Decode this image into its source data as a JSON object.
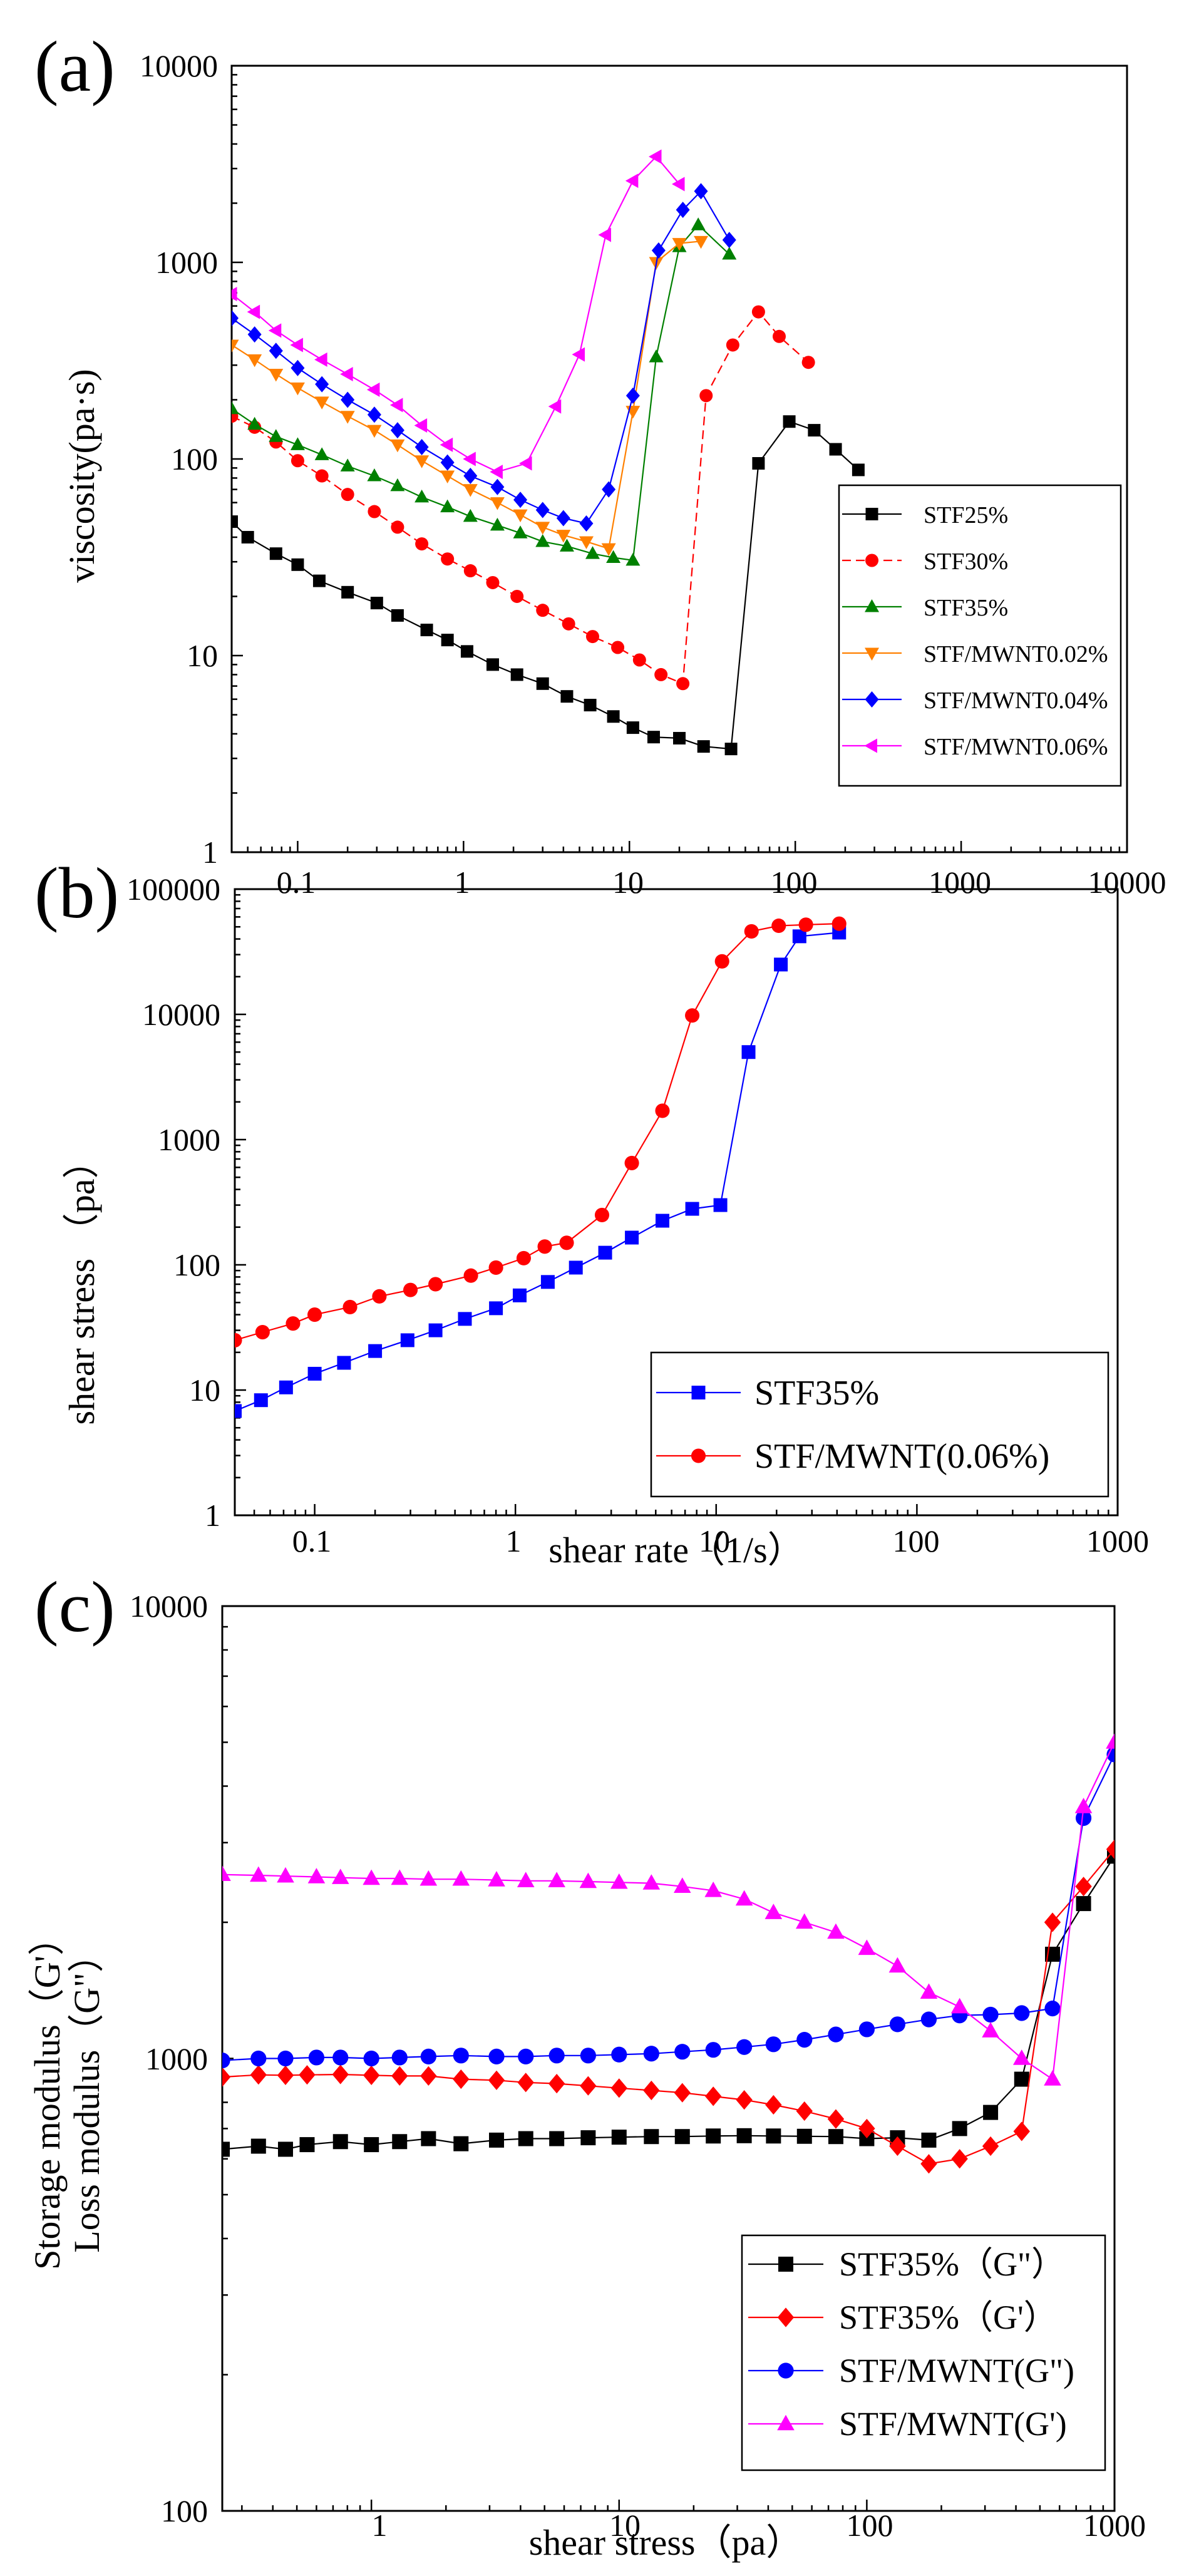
{
  "charts": [
    {
      "id": "a",
      "panel_label": "(a)",
      "ylabel": "viscosity(pa·s)",
      "xlabel": "",
      "x_tick_labels": [
        "0.1",
        "1",
        "10",
        "100",
        "1000",
        "10000"
      ],
      "y_tick_labels": [
        "1",
        "10",
        "100",
        "1000",
        "10000"
      ],
      "series_labels": [
        "STF25%",
        "STF30%",
        "STF35%",
        "STF/MWNT0.02%",
        "STF/MWNT0.04%",
        "STF/MWNT0.06%"
      ]
    },
    {
      "id": "b",
      "panel_label": "(b)",
      "ylabel": "shear stress （pa）",
      "xlabel": "shear rate（1/s）",
      "x_tick_labels": [
        "0.1",
        "1",
        "10",
        "100",
        "1000"
      ],
      "y_tick_labels": [
        "1",
        "10",
        "100",
        "1000",
        "10000",
        "100000"
      ],
      "series_labels": [
        "STF35%",
        "STF/MWNT(0.06%)"
      ]
    },
    {
      "id": "c",
      "panel_label": "(c)",
      "ylabel": "Storage modulus（G'）",
      "ylabel2": "Loss modulus（G\"）",
      "xlabel": "shear stress（pa）",
      "x_tick_labels": [
        "1",
        "10",
        "100",
        "1000"
      ],
      "y_tick_labels": [
        "100",
        "1000",
        "10000"
      ],
      "series_labels": [
        "STF35%（G\"）",
        "STF35%（G'）",
        "STF/MWNT(G\")",
        "STF/MWNT(G')"
      ]
    }
  ],
  "chart_data": [
    {
      "type": "line",
      "title": "(a)",
      "xlabel": "",
      "ylabel": "viscosity(pa·s)",
      "xscale": "log",
      "yscale": "log",
      "xlim": [
        0.04,
        10000
      ],
      "ylim": [
        1,
        10000
      ],
      "x_ticks": [
        0.1,
        1,
        10,
        100,
        1000,
        10000
      ],
      "y_ticks": [
        1,
        10,
        100,
        1000,
        10000
      ],
      "legend_position": "bottom-right",
      "series": [
        {
          "name": "STF25%",
          "color": "#000000",
          "marker": "square",
          "dashed": false,
          "x": [
            0.04,
            0.05,
            0.074,
            0.1,
            0.135,
            0.2,
            0.3,
            0.4,
            0.6,
            0.8,
            1.05,
            1.5,
            2.1,
            3,
            4.2,
            5.8,
            8,
            10.5,
            14,
            20,
            28,
            41,
            60,
            92,
            130,
            175,
            240
          ],
          "y": [
            48,
            40,
            33,
            29,
            24,
            21,
            18.5,
            16,
            13.5,
            12,
            10.5,
            9,
            8,
            7.2,
            6.2,
            5.6,
            4.9,
            4.3,
            3.85,
            3.8,
            3.45,
            3.35,
            95,
            155,
            140,
            112,
            88
          ]
        },
        {
          "name": "STF30%",
          "color": "#ff0000",
          "marker": "circle",
          "dashed": true,
          "x": [
            0.04,
            0.055,
            0.074,
            0.1,
            0.14,
            0.2,
            0.29,
            0.4,
            0.56,
            0.8,
            1.1,
            1.5,
            2.1,
            3,
            4.3,
            6,
            8.5,
            11.5,
            15.5,
            21,
            29,
            42,
            60,
            80,
            120
          ],
          "y": [
            165,
            145,
            122,
            98,
            82,
            66,
            54,
            45,
            37,
            31,
            27,
            23.5,
            20,
            17,
            14.5,
            12.5,
            11,
            9.5,
            8,
            7.2,
            210,
            380,
            560,
            420,
            310
          ]
        },
        {
          "name": "STF35%",
          "color": "#008000",
          "marker": "triangle-up",
          "dashed": false,
          "x": [
            0.04,
            0.055,
            0.074,
            0.1,
            0.14,
            0.2,
            0.29,
            0.4,
            0.56,
            0.8,
            1.1,
            1.6,
            2.2,
            3,
            4.2,
            6,
            8,
            10.5,
            14.5,
            20,
            26,
            40
          ],
          "y": [
            180,
            150,
            130,
            118,
            105,
            92,
            82,
            73,
            64,
            57,
            51,
            46,
            42,
            38,
            36,
            33,
            31.5,
            30.5,
            330,
            1200,
            1550,
            1100
          ]
        },
        {
          "name": "STF/MWNT0.02%",
          "color": "#ff8000",
          "marker": "triangle-down",
          "dashed": false,
          "x": [
            0.04,
            0.055,
            0.074,
            0.1,
            0.14,
            0.2,
            0.29,
            0.4,
            0.56,
            0.8,
            1.1,
            1.6,
            2.2,
            3,
            4,
            5.5,
            7.5,
            10.5,
            14.5,
            20,
            27
          ],
          "y": [
            380,
            320,
            270,
            230,
            195,
            165,
            140,
            118,
            98,
            82,
            70,
            60,
            52,
            45,
            41,
            38,
            35,
            175,
            1000,
            1250,
            1280
          ]
        },
        {
          "name": "STF/MWNT0.04%",
          "color": "#0000ff",
          "marker": "diamond",
          "dashed": false,
          "x": [
            0.04,
            0.055,
            0.074,
            0.1,
            0.14,
            0.2,
            0.29,
            0.4,
            0.56,
            0.8,
            1.1,
            1.6,
            2.2,
            3,
            4,
            5.5,
            7.5,
            10.5,
            15,
            21,
            27,
            40
          ],
          "y": [
            520,
            430,
            355,
            290,
            240,
            200,
            168,
            140,
            115,
            96,
            82,
            72,
            62,
            55,
            50,
            47,
            70,
            210,
            1150,
            1850,
            2300,
            1300
          ]
        },
        {
          "name": "STF/MWNT0.06%",
          "color": "#ff00ff",
          "marker": "triangle-left",
          "dashed": false,
          "x": [
            0.04,
            0.055,
            0.074,
            0.1,
            0.14,
            0.2,
            0.29,
            0.4,
            0.56,
            0.8,
            1.1,
            1.6,
            2.4,
            3.6,
            5,
            7.2,
            10.5,
            14.5,
            20
          ],
          "y": [
            690,
            560,
            450,
            380,
            320,
            270,
            225,
            188,
            148,
            118,
            100,
            86,
            95,
            185,
            340,
            1380,
            2600,
            3450,
            2500
          ]
        }
      ]
    },
    {
      "type": "line",
      "title": "(b)",
      "xlabel": "shear rate（1/s）",
      "ylabel": "shear stress （pa）",
      "xscale": "log",
      "yscale": "log",
      "xlim": [
        0.04,
        1000
      ],
      "ylim": [
        1,
        100000
      ],
      "x_ticks": [
        0.1,
        1,
        10,
        100,
        1000
      ],
      "y_ticks": [
        1,
        10,
        100,
        1000,
        10000,
        100000
      ],
      "legend_position": "bottom-right",
      "series": [
        {
          "name": "STF35%",
          "color": "#0000ff",
          "marker": "square",
          "dashed": false,
          "x": [
            0.04,
            0.054,
            0.072,
            0.1,
            0.14,
            0.2,
            0.29,
            0.4,
            0.56,
            0.8,
            1.05,
            1.45,
            2,
            2.8,
            3.8,
            5.4,
            7.6,
            10.5,
            14.5,
            21,
            26,
            41
          ],
          "y": [
            6.8,
            8.3,
            10.5,
            13.5,
            16.5,
            20.5,
            25,
            30,
            37,
            45,
            57,
            73,
            95,
            125,
            165,
            225,
            280,
            300,
            5000,
            25000,
            42000,
            45000
          ]
        },
        {
          "name": "STF/MWNT(0.06%)",
          "color": "#ff0000",
          "marker": "circle",
          "dashed": false,
          "x": [
            0.04,
            0.055,
            0.078,
            0.1,
            0.15,
            0.21,
            0.3,
            0.4,
            0.6,
            0.8,
            1.1,
            1.4,
            1.8,
            2.7,
            3.8,
            5.4,
            7.6,
            10.7,
            15,
            20.5,
            28,
            41
          ],
          "y": [
            25,
            29,
            34,
            40,
            46,
            56,
            63,
            70,
            82,
            95,
            113,
            140,
            150,
            250,
            650,
            1700,
            9800,
            26500,
            46000,
            51000,
            52000,
            53000
          ]
        }
      ]
    },
    {
      "type": "line",
      "title": "(c)",
      "xlabel": "shear stress（pa）",
      "ylabel": "Storage modulus（G'） / Loss modulus（G\"）",
      "xscale": "log",
      "yscale": "log",
      "xlim": [
        0.25,
        1000
      ],
      "ylim": [
        100,
        10000
      ],
      "x_ticks": [
        1,
        10,
        100,
        1000
      ],
      "y_ticks": [
        100,
        1000,
        10000
      ],
      "legend_position": "bottom-right",
      "series": [
        {
          "name": "STF35%（G\"）",
          "color": "#000000",
          "marker": "square",
          "dashed": false,
          "x": [
            0.25,
            0.35,
            0.45,
            0.55,
            0.75,
            1.0,
            1.3,
            1.7,
            2.3,
            3.2,
            4.2,
            5.6,
            7.5,
            10,
            13.5,
            18,
            24,
            32,
            42,
            56,
            75,
            100,
            133,
            178,
            237,
            316,
            422,
            562,
            750,
            1000
          ],
          "y": [
            630,
            640,
            630,
            645,
            655,
            645,
            655,
            665,
            648,
            660,
            665,
            665,
            668,
            670,
            672,
            672,
            674,
            675,
            674,
            673,
            672,
            665,
            668,
            660,
            700,
            760,
            900,
            1700,
            2200,
            2800
          ]
        },
        {
          "name": "STF35%（G'）",
          "color": "#ff0000",
          "marker": "diamond",
          "dashed": false,
          "x": [
            0.25,
            0.35,
            0.45,
            0.55,
            0.75,
            1.0,
            1.3,
            1.7,
            2.3,
            3.2,
            4.2,
            5.6,
            7.5,
            10,
            13.5,
            18,
            24,
            32,
            42,
            56,
            75,
            100,
            133,
            178,
            237,
            316,
            422,
            562,
            750,
            1000
          ],
          "y": [
            910,
            920,
            918,
            920,
            922,
            918,
            915,
            915,
            900,
            895,
            885,
            880,
            870,
            860,
            850,
            840,
            825,
            810,
            790,
            765,
            735,
            700,
            640,
            585,
            600,
            640,
            690,
            2000,
            2400,
            2900
          ]
        },
        {
          "name": "STF/MWNT(G\")",
          "color": "#0000ff",
          "marker": "circle",
          "dashed": false,
          "x": [
            0.25,
            0.35,
            0.45,
            0.6,
            0.75,
            1.0,
            1.3,
            1.7,
            2.3,
            3.2,
            4.2,
            5.6,
            7.5,
            10,
            13.5,
            18,
            24,
            32,
            42,
            56,
            75,
            100,
            133,
            178,
            237,
            316,
            422,
            562,
            750,
            1000
          ],
          "y": [
            990,
            1000,
            1000,
            1005,
            1005,
            1000,
            1005,
            1010,
            1015,
            1010,
            1010,
            1015,
            1015,
            1020,
            1025,
            1035,
            1045,
            1060,
            1075,
            1100,
            1130,
            1160,
            1190,
            1220,
            1245,
            1250,
            1260,
            1290,
            3400,
            4700
          ]
        },
        {
          "name": "STF/MWNT(G')",
          "color": "#ff00ff",
          "marker": "triangle-up",
          "dashed": false,
          "x": [
            0.25,
            0.35,
            0.45,
            0.6,
            0.75,
            1.0,
            1.3,
            1.7,
            2.3,
            3.2,
            4.2,
            5.6,
            7.5,
            10,
            13.5,
            18,
            24,
            32,
            42,
            56,
            75,
            100,
            133,
            178,
            237,
            316,
            422,
            562,
            750,
            1000
          ],
          "y": [
            2550,
            2540,
            2530,
            2520,
            2510,
            2500,
            2500,
            2490,
            2490,
            2480,
            2470,
            2470,
            2460,
            2450,
            2440,
            2400,
            2350,
            2250,
            2100,
            2000,
            1900,
            1750,
            1600,
            1400,
            1300,
            1150,
            1000,
            900,
            3600,
            5000
          ]
        }
      ]
    }
  ]
}
